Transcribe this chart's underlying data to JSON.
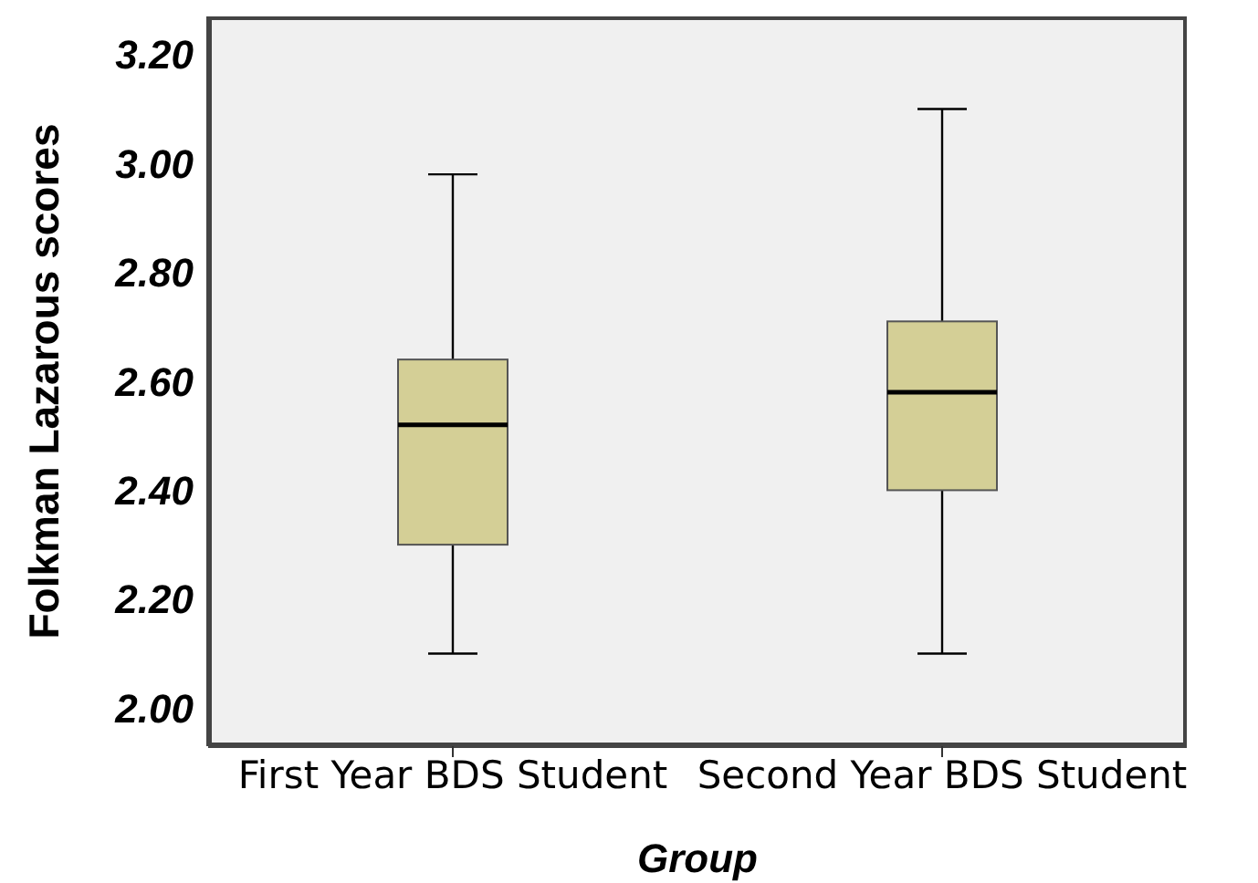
{
  "chart_data": {
    "type": "box",
    "xlabel": "Group",
    "ylabel": "Folkman Lazarous scores",
    "categories": [
      "First Year BDS Student",
      "Second Year BDS Student"
    ],
    "color": "#d4cf96",
    "boxes": [
      {
        "low": 2.1,
        "q1": 2.3,
        "median": 2.52,
        "q3": 2.64,
        "high": 2.98
      },
      {
        "low": 2.1,
        "q1": 2.4,
        "median": 2.58,
        "q3": 2.71,
        "high": 3.1
      }
    ],
    "ylim": [
      1.93,
      3.27
    ],
    "yticks": [
      {
        "value": 2.0,
        "label": "2.00"
      },
      {
        "value": 2.2,
        "label": "2.20"
      },
      {
        "value": 2.4,
        "label": "2.40"
      },
      {
        "value": 2.6,
        "label": "2.60"
      },
      {
        "value": 2.8,
        "label": "2.80"
      },
      {
        "value": 3.0,
        "label": "3.00"
      },
      {
        "value": 3.2,
        "label": "3.20"
      }
    ],
    "grid": false
  }
}
